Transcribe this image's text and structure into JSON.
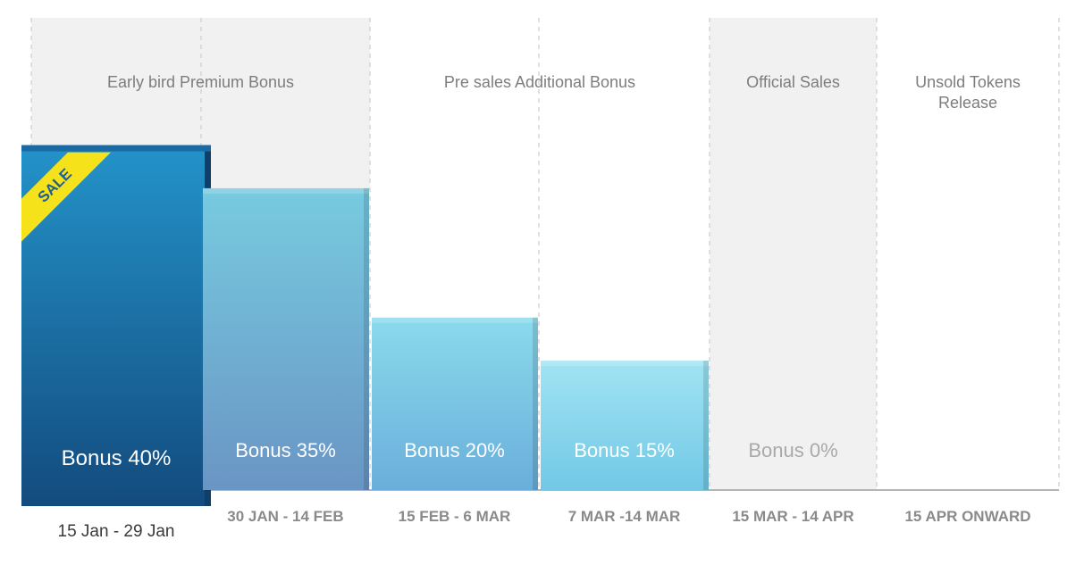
{
  "chart_data": {
    "type": "bar",
    "title": "",
    "xlabel": "",
    "ylabel": "",
    "ylim": [
      0,
      50
    ],
    "phases": [
      {
        "label": "Early bird Premium Bonus",
        "columns": [
          0,
          1
        ]
      },
      {
        "label": "Pre sales Additional Bonus",
        "columns": [
          2,
          3
        ]
      },
      {
        "label": "Official Sales",
        "columns": [
          4
        ]
      },
      {
        "label": "Unsold Tokens\nRelease",
        "columns": [
          5
        ]
      }
    ],
    "categories": [
      "15 Jan - 29 Jan",
      "30 JAN - 14 FEB",
      "15 FEB - 6 MAR",
      "7 MAR -14 MAR",
      "15 MAR - 14 APR",
      "15 APR ONWARD"
    ],
    "values": [
      40,
      35,
      20,
      15,
      0,
      null
    ],
    "bar_labels": [
      "Bonus 40%",
      "Bonus 35%",
      "Bonus 20%",
      "Bonus 15%",
      "Bonus 0%",
      ""
    ],
    "highlighted_index": 0,
    "badge": "SALE"
  },
  "colors": {
    "band_shade": "#f1f1f1",
    "grid_dash": "#d6d6d6",
    "baseline": "#b5b5b5",
    "highlight_top": "#2393c9",
    "highlight_bottom": "#134b7e",
    "badge": "#f6e21b",
    "badge_text": "#1d5f96"
  }
}
